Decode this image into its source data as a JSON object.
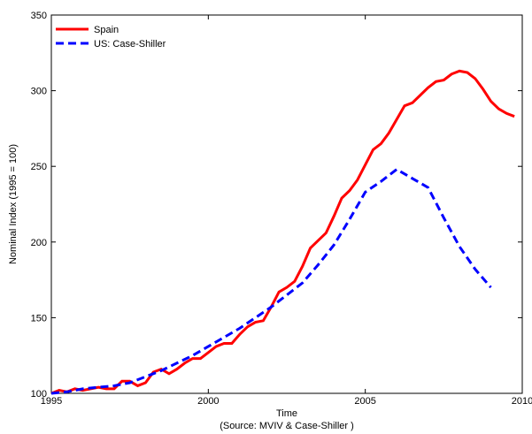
{
  "chart_data": {
    "type": "line",
    "x_label": "Time",
    "x_note": "(Source: MVIV & Case-Shiller )",
    "y_label": "Nominal Index (1995 = 100)",
    "xlim": [
      1995,
      2010
    ],
    "xticks": [
      1995,
      2000,
      2005,
      2010
    ],
    "ylim": [
      100,
      350
    ],
    "yticks": [
      100,
      150,
      200,
      250,
      300,
      350
    ],
    "legend": "upper-left",
    "series": [
      {
        "name": "Spain",
        "color": "#ff0000",
        "dash": false,
        "x": [
          1995,
          1995.25,
          1995.5,
          1995.75,
          1996,
          1996.25,
          1996.5,
          1996.75,
          1997,
          1997.25,
          1997.5,
          1997.75,
          1998,
          1998.25,
          1998.5,
          1998.75,
          1999,
          1999.25,
          1999.5,
          1999.75,
          2000,
          2000.25,
          2000.5,
          2000.75,
          2001,
          2001.25,
          2001.5,
          2001.75,
          2002,
          2002.25,
          2002.5,
          2002.75,
          2003,
          2003.25,
          2003.5,
          2003.75,
          2004,
          2004.25,
          2004.5,
          2004.75,
          2005,
          2005.25,
          2005.5,
          2005.75,
          2006,
          2006.25,
          2006.5,
          2006.75,
          2007,
          2007.25,
          2007.5,
          2007.75,
          2008,
          2008.25,
          2008.5,
          2008.75,
          2009,
          2009.25,
          2009.5,
          2009.75
        ],
        "values": [
          100,
          102,
          101,
          103,
          102,
          103,
          104,
          103,
          103,
          108,
          108,
          105,
          107,
          114,
          116,
          113,
          116,
          120,
          123,
          123,
          127,
          131,
          133,
          133,
          139,
          144,
          147,
          148,
          157,
          167,
          170,
          174,
          184,
          196,
          201,
          206,
          217,
          229,
          234,
          241,
          251,
          261,
          265,
          272,
          281,
          290,
          292,
          297,
          302,
          306,
          307,
          311,
          313,
          312,
          308,
          301,
          293,
          288,
          285,
          283
        ]
      },
      {
        "name": "US: Case-Shiller",
        "color": "#0000ff",
        "dash": true,
        "x": [
          1995,
          1995.5,
          1996,
          1996.5,
          1997,
          1997.5,
          1998,
          1998.5,
          1999,
          1999.5,
          2000,
          2000.5,
          2001,
          2001.5,
          2002,
          2002.5,
          2003,
          2003.5,
          2004,
          2004.5,
          2005,
          2005.5,
          2006,
          2006.5,
          2007,
          2007.5,
          2008,
          2008.5,
          2009
        ],
        "values": [
          100,
          101,
          103,
          104,
          105,
          107,
          111,
          115,
          120,
          125,
          131,
          137,
          143,
          150,
          157,
          165,
          173,
          185,
          198,
          215,
          233,
          240,
          248,
          242,
          236,
          216,
          197,
          182,
          170
        ]
      }
    ]
  }
}
